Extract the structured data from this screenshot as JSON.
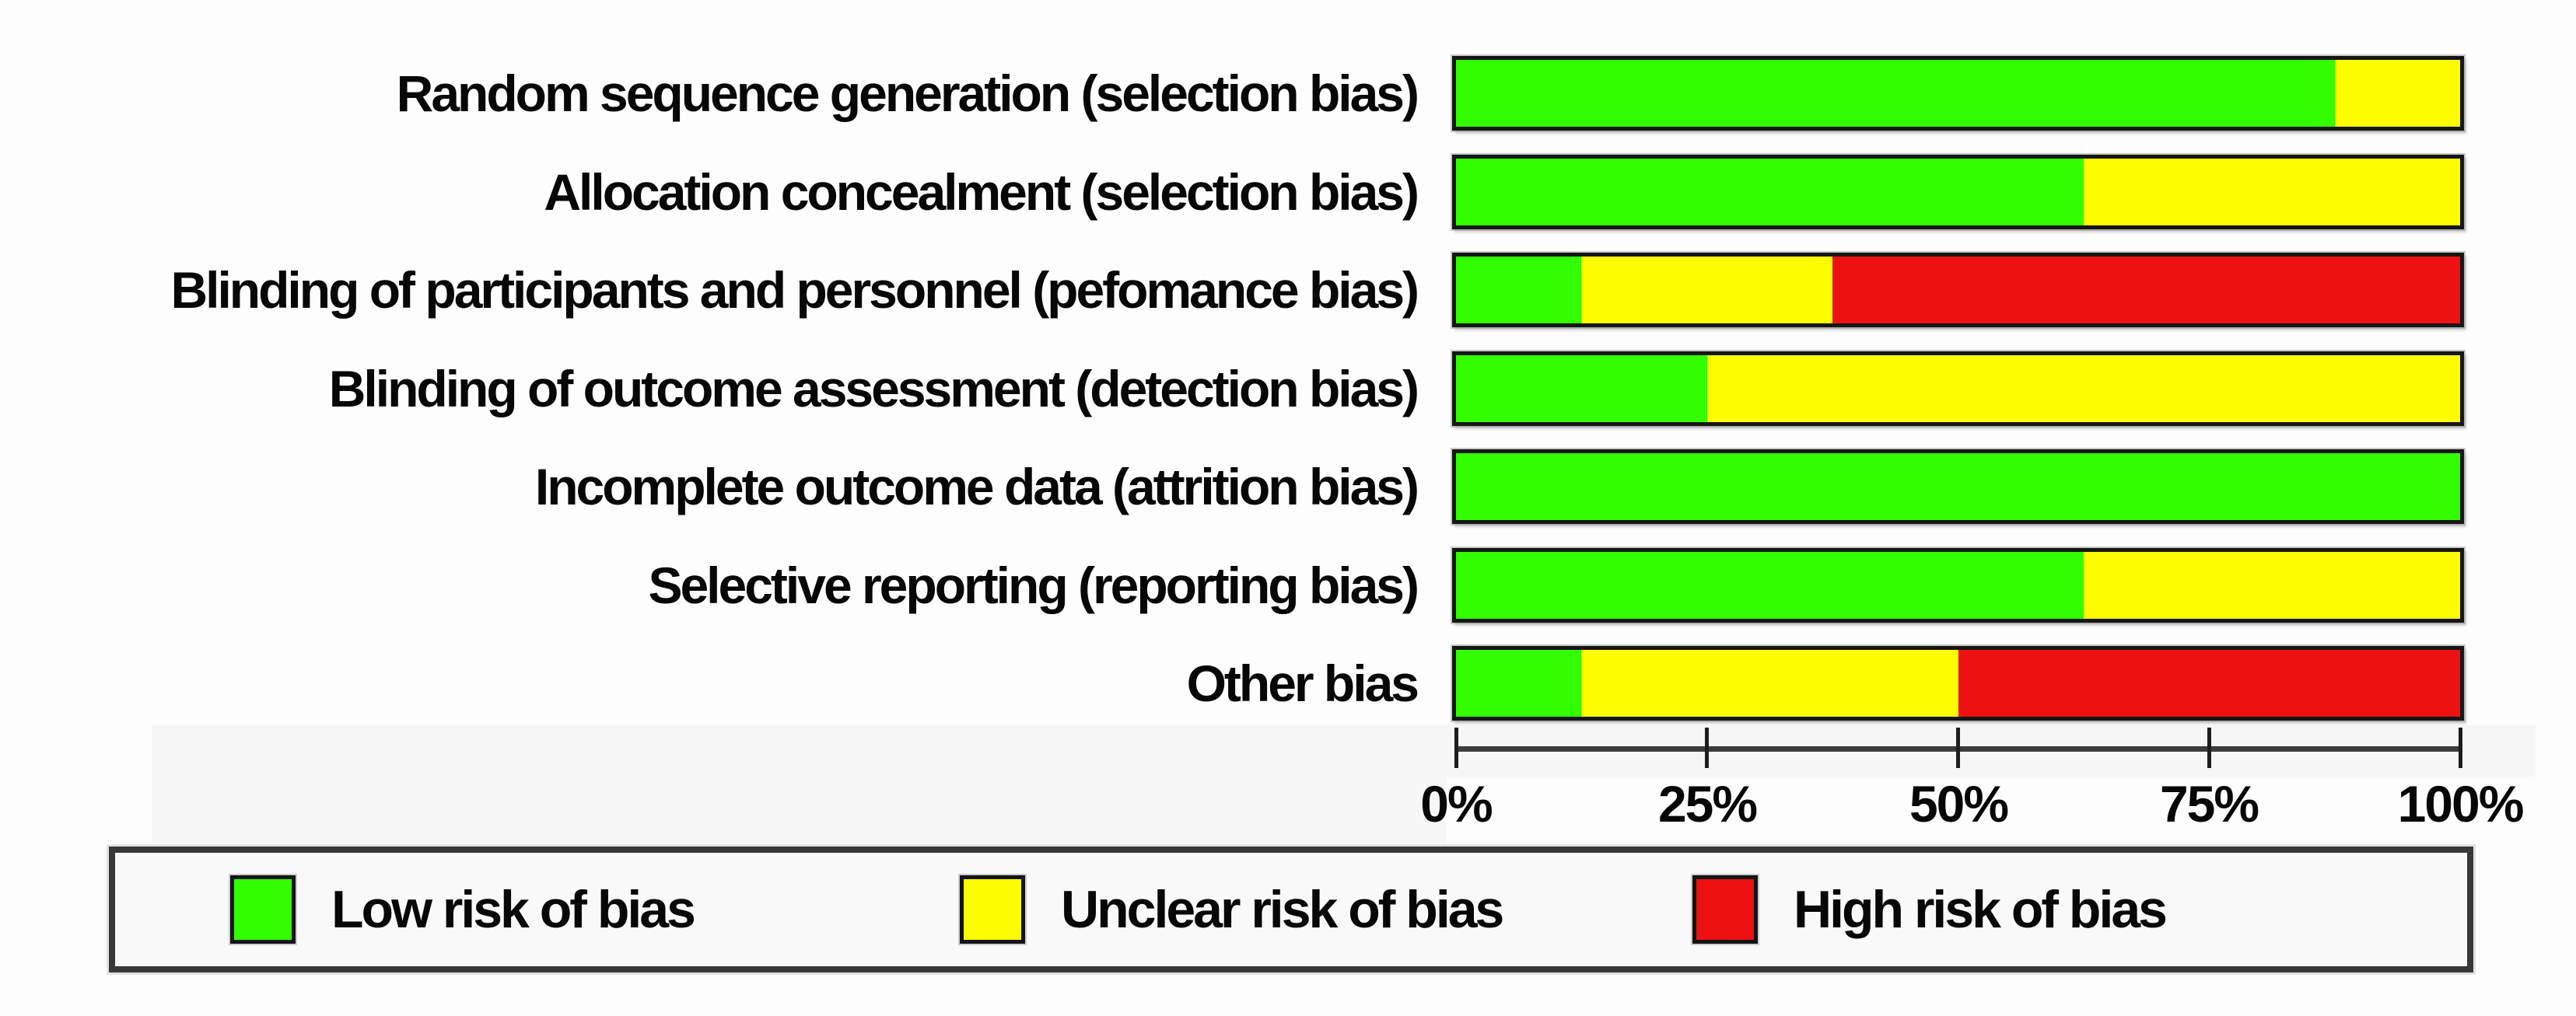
{
  "chart_data": {
    "type": "bar",
    "orientation": "horizontal",
    "stacked": true,
    "title": "",
    "xlabel": "",
    "ylabel": "",
    "categories": [
      "Random sequence generation (selection bias)",
      "Allocation concealment (selection bias)",
      "Blinding of participants and personnel (pefomance bias)",
      "Blinding of outcome assessment (detection bias)",
      "Incomplete outcome data (attrition bias)",
      "Selective reporting (reporting bias)",
      "Other bias"
    ],
    "series": [
      {
        "name": "Low risk of bias",
        "color": "#32fe00",
        "values": [
          87.5,
          62.5,
          12.5,
          25,
          100,
          62.5,
          12.5
        ]
      },
      {
        "name": "Unclear risk of bias",
        "color": "#fdfd00",
        "values": [
          12.5,
          37.5,
          25,
          75,
          0,
          37.5,
          37.5
        ]
      },
      {
        "name": "High risk of bias",
        "color": "#ee1111",
        "values": [
          0,
          0,
          62.5,
          0,
          0,
          0,
          50
        ]
      }
    ],
    "x_ticks": [
      "0%",
      "25%",
      "50%",
      "75%",
      "100%"
    ],
    "xlim": [
      0,
      100
    ],
    "grid": false,
    "legend_position": "bottom"
  },
  "legend": {
    "items": [
      {
        "label": "Low risk of bias",
        "color": "#32fe00"
      },
      {
        "label": "Unclear risk of bias",
        "color": "#fdfd00"
      },
      {
        "label": "High risk of bias",
        "color": "#ee1111"
      }
    ]
  }
}
